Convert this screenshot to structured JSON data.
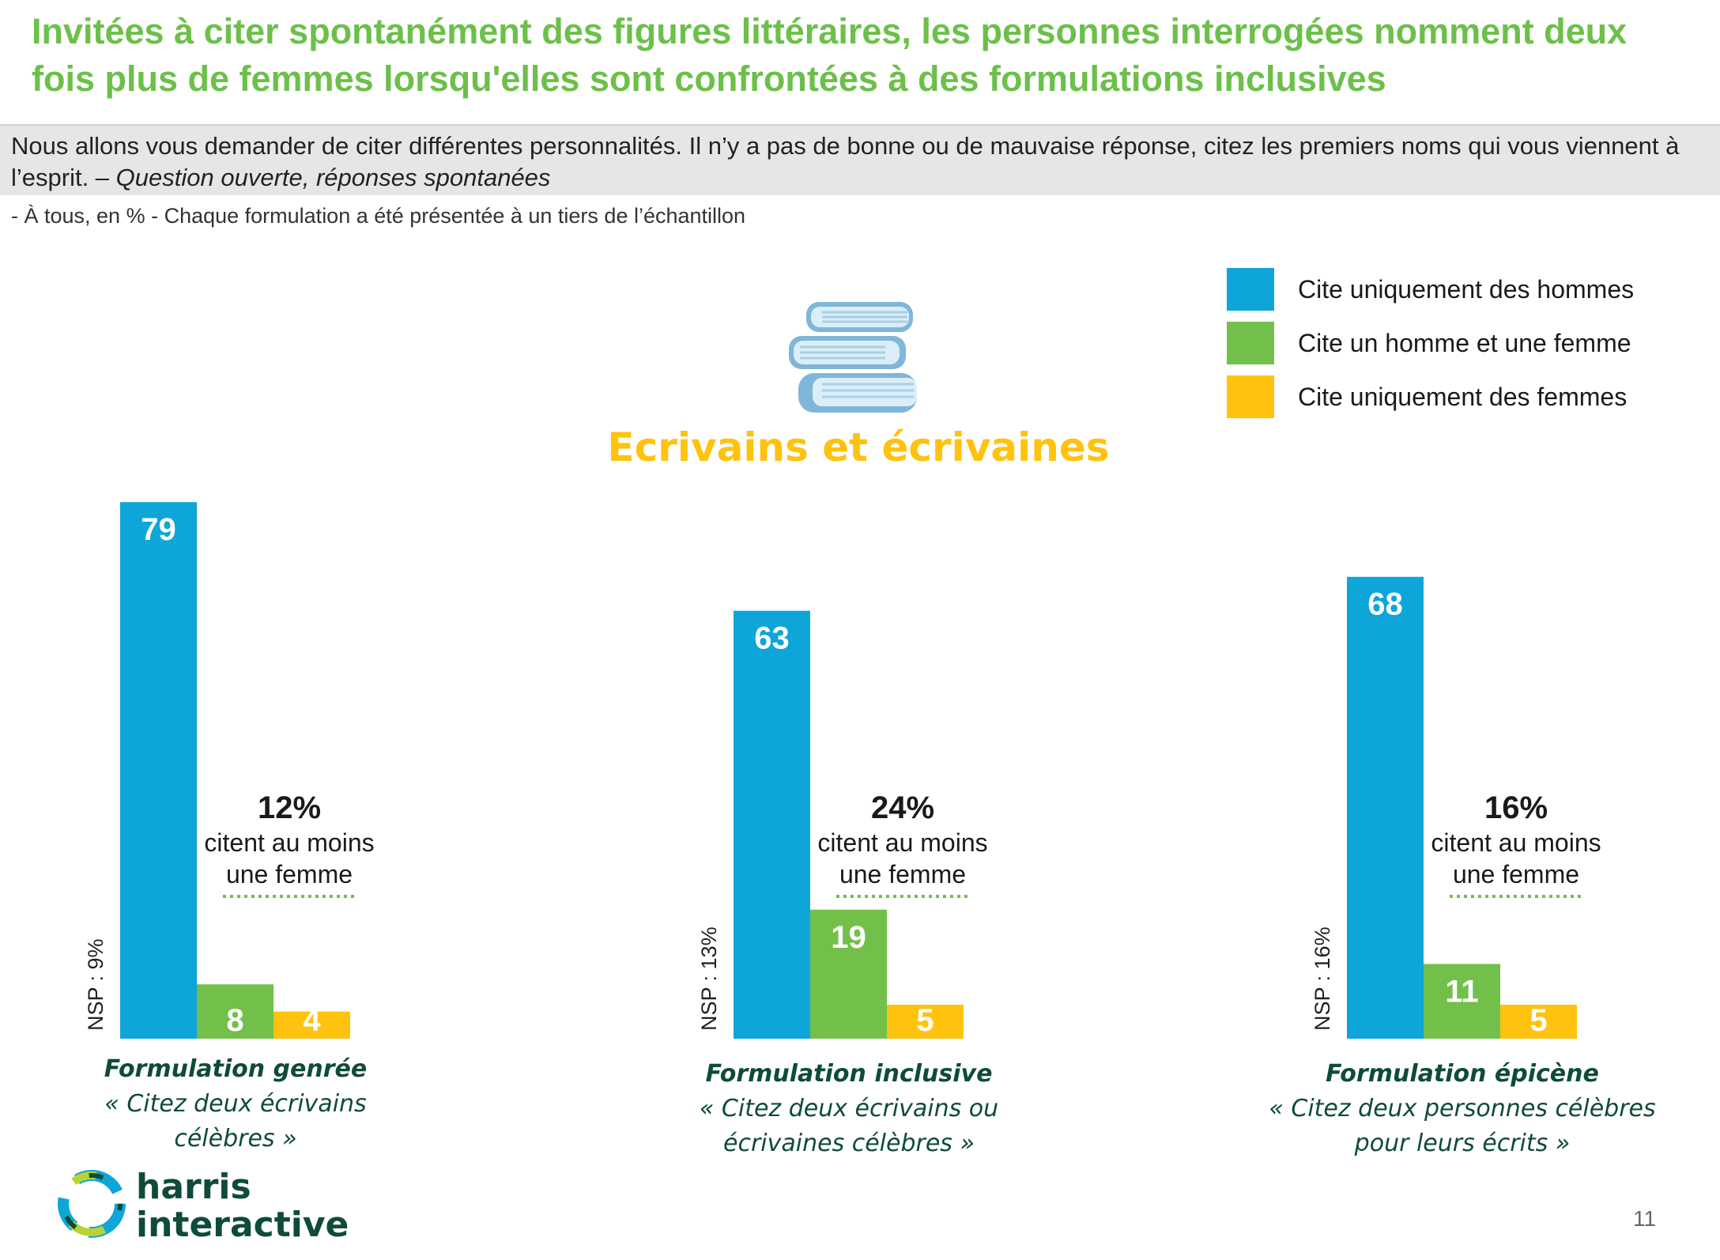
{
  "header": {
    "title": "Invitées à citer spontanément des figures littéraires, les personnes interrogées nomment deux fois plus de femmes lorsqu'elles sont confrontées à des formulations inclusives",
    "question": "Nous allons vous demander de citer différentes personnalités. Il n’y a pas de bonne ou de mauvaise réponse, citez les premiers noms qui vous viennent à l’esprit. –",
    "question_italic": "Question ouverte, réponses spontanées",
    "base": "- À tous, en % - Chaque formulation a été présentée à un tiers de l’échantillon"
  },
  "subject": "Ecrivains et écrivaines",
  "colors": {
    "title": "#6cc04a",
    "men": "#0ea5d8",
    "both": "#72c04a",
    "women": "#ffc20e",
    "subject": "#ffc20e",
    "dotted": "#72c04a",
    "caption": "#0e4b3a"
  },
  "legend": [
    {
      "label": "Cite uniquement des hommes",
      "color": "#0ea5d8"
    },
    {
      "label": "Cite un homme et une femme",
      "color": "#72c04a"
    },
    {
      "label": "Cite uniquement des femmes",
      "color": "#ffc20e"
    }
  ],
  "chart_data": {
    "type": "bar",
    "unit": "%",
    "series_order": [
      "Cite uniquement des hommes",
      "Cite un homme et une femme",
      "Cite uniquement des femmes"
    ],
    "ylim": [
      0,
      100
    ],
    "groups": [
      {
        "caption_title": "Formulation genrée",
        "caption_lines": [
          "« Citez deux écrivains",
          "célèbres »"
        ],
        "values": [
          79,
          8,
          4
        ],
        "nsp": "NSP : 9%",
        "callout_pct": "12%",
        "callout_lines": [
          "citent au moins",
          "une femme"
        ]
      },
      {
        "caption_title": "Formulation inclusive",
        "caption_lines": [
          "« Citez deux écrivains ou",
          "écrivaines célèbres »"
        ],
        "values": [
          63,
          19,
          5
        ],
        "nsp": "NSP : 13%",
        "callout_pct": "24%",
        "callout_lines": [
          "citent au moins",
          "une femme"
        ]
      },
      {
        "caption_title": "Formulation épicène",
        "caption_lines": [
          "« Citez deux personnes célèbres",
          "pour leurs écrits »"
        ],
        "values": [
          68,
          11,
          5
        ],
        "nsp": "NSP : 16%",
        "callout_pct": "16%",
        "callout_lines": [
          "citent au moins",
          "une femme"
        ]
      }
    ]
  },
  "footer": {
    "logo_line1": "harris",
    "logo_line2": "interactive",
    "page_number": "11"
  }
}
